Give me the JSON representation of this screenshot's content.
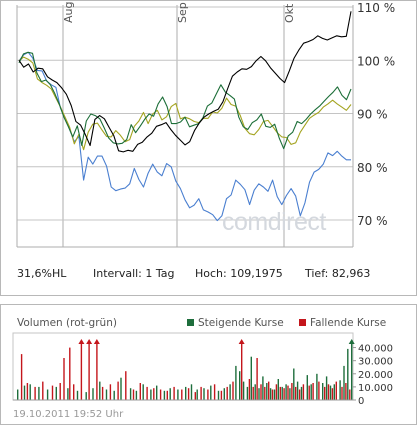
{
  "watermark_text": "comdirect",
  "stats": {
    "hl": "31,6%HL",
    "intervall": "Intervall: 1 Tag",
    "hoch": "Hoch: 109,1975",
    "tief": "Tief:  82,963"
  },
  "volume": {
    "title": "Volumen (rot-grün)",
    "legend_up": "Steigende Kurse",
    "legend_down": "Fallende Kurse",
    "color_up": "#1e6e3c",
    "color_down": "#c4161c",
    "timestamp": "19.10.2011 19:52 Uhr"
  },
  "chart_data": [
    {
      "type": "line",
      "x_tick_labels": [
        "Aug",
        "Sep",
        "Okt"
      ],
      "y_tick_labels": [
        "110 %",
        "100 %",
        "90 %",
        "80 %",
        "70 %"
      ],
      "ylim": [
        67,
        110
      ],
      "y_scale": "linear",
      "grid": true,
      "series": [
        {
          "color": "#000000",
          "values": [
            100.0,
            98.7,
            99.3,
            97.8,
            98.5,
            98.4,
            96.9,
            96.3,
            95.8,
            94.8,
            93.6,
            91.5,
            88.5,
            87.8,
            86.0,
            84.0,
            88.9,
            89.6,
            89.0,
            87.4,
            85.8,
            83.0,
            82.8,
            83.1,
            82.9,
            84.2,
            84.6,
            85.6,
            86.3,
            87.6,
            87.9,
            88.3,
            87.0,
            85.9,
            85.0,
            84.1,
            84.7,
            86.8,
            88.2,
            89.3,
            89.9,
            90.4,
            90.8,
            92.2,
            94.7,
            97.0,
            97.8,
            98.4,
            98.3,
            98.8,
            99.9,
            100.7,
            99.9,
            98.6,
            97.6,
            96.6,
            95.8,
            98.0,
            100.4,
            101.9,
            103.2,
            103.5,
            103.9,
            104.6,
            104.1,
            103.8,
            104.2,
            104.6,
            104.4,
            104.5,
            109.2
          ]
        },
        {
          "color": "#1c6e38",
          "values": [
            99.5,
            101.2,
            101.5,
            101.3,
            97.6,
            96.0,
            96.3,
            95.4,
            93.7,
            91.7,
            89.3,
            87.5,
            85.6,
            87.7,
            84.0,
            88.6,
            89.9,
            89.6,
            89.0,
            87.3,
            85.4,
            84.5,
            84.3,
            84.4,
            85.1,
            87.9,
            86.4,
            87.6,
            88.9,
            89.9,
            89.5,
            91.8,
            93.1,
            91.3,
            88.1,
            88.1,
            88.4,
            89.3,
            87.5,
            87.8,
            88.1,
            89.2,
            91.4,
            92.0,
            93.7,
            95.4,
            94.0,
            93.4,
            92.7,
            89.3,
            87.5,
            87.0,
            88.3,
            88.8,
            89.9,
            87.6,
            87.4,
            88.0,
            85.4,
            83.4,
            85.8,
            86.5,
            88.5,
            88.1,
            88.9,
            89.9,
            90.7,
            91.4,
            92.3,
            93.2,
            94.0,
            95.0,
            93.4,
            92.6,
            94.6
          ]
        },
        {
          "color": "#a4a420",
          "values": [
            99.9,
            100.6,
            100.2,
            99.5,
            96.5,
            95.8,
            95.3,
            94.6,
            92.9,
            91.2,
            89.3,
            87.4,
            84.3,
            86.1,
            83.2,
            86.5,
            88.0,
            88.2,
            86.9,
            85.7,
            85.6,
            86.8,
            85.9,
            84.7,
            85.1,
            87.6,
            88.6,
            90.2,
            88.1,
            89.9,
            90.6,
            88.8,
            89.4,
            91.3,
            91.9,
            89.0,
            89.3,
            89.0,
            88.5,
            88.3,
            89.1,
            89.1,
            90.3,
            90.1,
            91.0,
            92.9,
            91.7,
            91.4,
            89.6,
            87.2,
            86.2,
            86.0,
            87.0,
            88.5,
            88.7,
            87.6,
            86.4,
            85.6,
            85.5,
            84.2,
            84.5,
            86.5,
            87.8,
            89.1,
            89.7,
            90.2,
            91.2,
            91.8,
            92.5,
            91.8,
            91.2,
            90.6,
            91.7
          ]
        },
        {
          "color": "#4a7fd0",
          "values": [
            99.9,
            101.0,
            101.5,
            100.4,
            98.1,
            98.0,
            96.1,
            95.4,
            94.9,
            91.0,
            89.2,
            87.0,
            84.7,
            85.7,
            77.5,
            81.8,
            80.5,
            82.0,
            82.0,
            80.1,
            76.2,
            75.5,
            75.8,
            76.0,
            76.8,
            79.7,
            77.6,
            76.2,
            78.8,
            80.5,
            79.0,
            78.3,
            80.6,
            80.0,
            77.3,
            75.9,
            73.8,
            72.3,
            72.8,
            74.0,
            71.9,
            71.5,
            71.0,
            69.9,
            70.8,
            74.0,
            74.7,
            77.5,
            76.7,
            75.7,
            72.9,
            75.6,
            76.8,
            76.2,
            75.4,
            77.5,
            74.4,
            72.9,
            74.6,
            75.9,
            74.5,
            70.8,
            73.2,
            77.1,
            79.0,
            79.5,
            80.5,
            82.6,
            82.1,
            82.9,
            82.0,
            81.3,
            81.3
          ]
        }
      ]
    },
    {
      "type": "bar",
      "y_tick_labels": [
        "40.000",
        "30.000",
        "20.000",
        "10.000",
        "0"
      ],
      "ylim": [
        0,
        45000
      ],
      "series": [
        {
          "name": "Steigende Kurse",
          "points": [
            [
              0,
              8000
            ],
            [
              7,
              11000
            ],
            [
              13,
              12000
            ],
            [
              22,
              10000
            ],
            [
              31,
              8000
            ],
            [
              40,
              10000
            ],
            [
              52,
              9000
            ],
            [
              62,
              7000
            ],
            [
              71,
              6000
            ],
            [
              78,
              9000
            ],
            [
              85,
              14000
            ],
            [
              92,
              8000
            ],
            [
              100,
              7000
            ],
            [
              107,
              17000
            ],
            [
              117,
              9000
            ],
            [
              123,
              7000
            ],
            [
              130,
              12000
            ],
            [
              138,
              8000
            ],
            [
              144,
              11000
            ],
            [
              152,
              7000
            ],
            [
              158,
              9000
            ],
            [
              166,
              8000
            ],
            [
              174,
              10000
            ],
            [
              180,
              12000
            ],
            [
              186,
              8000
            ],
            [
              193,
              9000
            ],
            [
              200,
              11000
            ],
            [
              208,
              7000
            ],
            [
              214,
              9000
            ],
            [
              220,
              12000
            ],
            [
              226,
              26000
            ],
            [
              230,
              22000
            ],
            [
              234,
              14000
            ],
            [
              238,
              10000
            ],
            [
              242,
              33000
            ],
            [
              246,
              12000
            ],
            [
              250,
              9000
            ],
            [
              254,
              18000
            ],
            [
              258,
              13000
            ],
            [
              262,
              9000
            ],
            [
              266,
              8000
            ],
            [
              270,
              16000
            ],
            [
              274,
              10000
            ],
            [
              278,
              12000
            ],
            [
              282,
              9000
            ],
            [
              286,
              24000
            ],
            [
              290,
              14000
            ],
            [
              294,
              10000
            ],
            [
              300,
              19000
            ],
            [
              304,
              12000
            ],
            [
              310,
              20000
            ],
            [
              316,
              13000
            ],
            [
              320,
              18000
            ],
            [
              324,
              11000
            ],
            [
              328,
              12000
            ],
            [
              334,
              15000
            ],
            [
              338,
              26000
            ],
            [
              342,
              39000
            ],
            [
              346,
              45000
            ]
          ]
        },
        {
          "name": "Fallende Kurse",
          "points": [
            [
              4,
              35000
            ],
            [
              10,
              13000
            ],
            [
              18,
              10000
            ],
            [
              26,
              14000
            ],
            [
              36,
              11000
            ],
            [
              44,
              13000
            ],
            [
              48,
              32000
            ],
            [
              54,
              40000
            ],
            [
              58,
              12000
            ],
            [
              66,
              45000
            ],
            [
              74,
              45000
            ],
            [
              82,
              45000
            ],
            [
              88,
              10000
            ],
            [
              96,
              12000
            ],
            [
              104,
              14000
            ],
            [
              112,
              22000
            ],
            [
              120,
              8000
            ],
            [
              127,
              13000
            ],
            [
              134,
              10000
            ],
            [
              141,
              9000
            ],
            [
              148,
              8000
            ],
            [
              155,
              7000
            ],
            [
              162,
              10000
            ],
            [
              170,
              8000
            ],
            [
              177,
              9000
            ],
            [
              184,
              6000
            ],
            [
              190,
              10000
            ],
            [
              197,
              8000
            ],
            [
              204,
              12000
            ],
            [
              211,
              7000
            ],
            [
              217,
              10000
            ],
            [
              223,
              14000
            ],
            [
              232,
              45000
            ],
            [
              240,
              16000
            ],
            [
              244,
              10000
            ],
            [
              248,
              32000
            ],
            [
              252,
              12000
            ],
            [
              256,
              10000
            ],
            [
              260,
              14000
            ],
            [
              264,
              8000
            ],
            [
              268,
              12000
            ],
            [
              272,
              10000
            ],
            [
              276,
              9000
            ],
            [
              280,
              11000
            ],
            [
              284,
              13000
            ],
            [
              288,
              10000
            ],
            [
              292,
              8000
            ],
            [
              296,
              12000
            ],
            [
              302,
              11000
            ],
            [
              306,
              13000
            ],
            [
              312,
              14000
            ],
            [
              318,
              10000
            ],
            [
              322,
              12000
            ],
            [
              326,
              9000
            ],
            [
              330,
              14000
            ],
            [
              336,
              10000
            ],
            [
              340,
              13000
            ],
            [
              344,
              8000
            ]
          ]
        }
      ]
    }
  ]
}
